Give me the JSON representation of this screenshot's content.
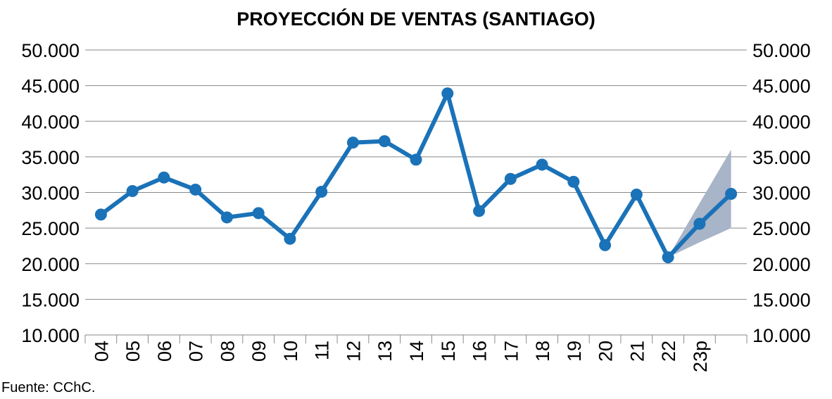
{
  "chart_data": {
    "type": "line",
    "title": "PROYECCIÓN DE VENTAS (SANTIAGO)",
    "xlabel": "",
    "ylabel": "",
    "ylim": [
      10000,
      50000
    ],
    "yticks": [
      10000,
      15000,
      20000,
      25000,
      30000,
      35000,
      40000,
      45000,
      50000
    ],
    "ytick_labels": [
      "10.000",
      "15.000",
      "20.000",
      "25.000",
      "30.000",
      "35.000",
      "40.000",
      "45.000",
      "50.000"
    ],
    "categories": [
      "04",
      "05",
      "06",
      "07",
      "08",
      "09",
      "10",
      "11",
      "12",
      "13",
      "14",
      "15",
      "16",
      "17",
      "18",
      "19",
      "20",
      "21",
      "22",
      "23p",
      ""
    ],
    "series": [
      {
        "values": [
          26900,
          30200,
          32100,
          30400,
          26500,
          27100,
          23500,
          30100,
          37000,
          37200,
          34600,
          43900,
          27400,
          31900,
          33900,
          31500,
          22600,
          29700,
          20900,
          25600,
          29800
        ]
      }
    ],
    "band": {
      "start_index": 18,
      "upper": [
        20900,
        28500,
        36000
      ],
      "lower": [
        20900,
        23000,
        25000
      ]
    },
    "grid": true,
    "secondary_y_axis": true,
    "legend": "none",
    "colors": {
      "line": "#1a72b8",
      "band": "#a8b4c8",
      "grid": "#888888"
    }
  },
  "source_note": "Fuente:  CChC."
}
